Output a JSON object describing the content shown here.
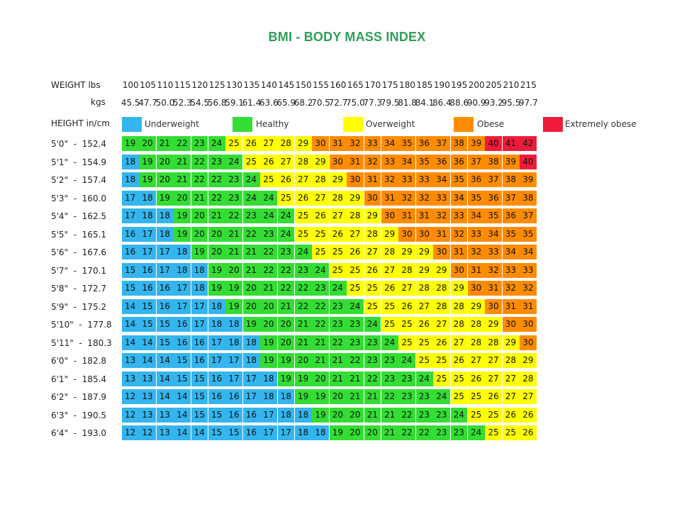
{
  "chart_data": {
    "type": "table",
    "title": "BMI - BODY MASS INDEX",
    "weight_lbs_label": "WEIGHT lbs",
    "weight_kgs_label": "kgs",
    "height_label": "HEIGHT in/cm",
    "weights_lbs": [
      "100",
      "105",
      "110",
      "115",
      "120",
      "125",
      "130",
      "135",
      "140",
      "145",
      "150",
      "155",
      "160",
      "165",
      "170",
      "175",
      "180",
      "185",
      "190",
      "195",
      "200",
      "205",
      "210",
      "215"
    ],
    "weights_kgs": [
      "45.5",
      "47.7",
      "50.0",
      "52.3",
      "54.5",
      "56.8",
      "59.1",
      "61.4",
      "63.6",
      "65.9",
      "68.2",
      "70.5",
      "72.7",
      "75.0",
      "77.3",
      "79.5",
      "81.8",
      "84.1",
      "86.4",
      "88.6",
      "90.9",
      "93.2",
      "95.5",
      "97.7"
    ],
    "heights": [
      "5'0\"  -  152.4",
      "5'1\"  -  154.9",
      "5'2\"  -  157.4",
      "5'3\"  -  160.0",
      "5'4\"  -  162.5",
      "5'5\"  -  165.1",
      "5'6\"  -  167.6",
      "5'7\"  -  170.1",
      "5'8\"  -  172.7",
      "5'9\"  -  175.2",
      "5'10\"  -  177.8",
      "5'11\"  -  180.3",
      "6'0\"  -  182.8",
      "6'1\"  -  185.4",
      "6'2\"  -  187.9",
      "6'3\"  -  190.5",
      "6'4\"  -  193.0"
    ],
    "bmi": [
      [
        19,
        20,
        21,
        22,
        23,
        24,
        25,
        26,
        27,
        28,
        29,
        30,
        31,
        32,
        33,
        34,
        35,
        36,
        37,
        38,
        39,
        40,
        41,
        42
      ],
      [
        18,
        19,
        20,
        21,
        22,
        23,
        24,
        25,
        26,
        27,
        28,
        29,
        30,
        31,
        32,
        33,
        34,
        35,
        36,
        36,
        37,
        38,
        39,
        40
      ],
      [
        18,
        19,
        20,
        21,
        22,
        22,
        23,
        24,
        25,
        26,
        27,
        28,
        29,
        30,
        31,
        32,
        33,
        33,
        34,
        35,
        36,
        37,
        38,
        39
      ],
      [
        17,
        18,
        19,
        20,
        21,
        22,
        23,
        24,
        24,
        25,
        26,
        27,
        28,
        29,
        30,
        31,
        32,
        32,
        33,
        34,
        35,
        36,
        37,
        38
      ],
      [
        17,
        18,
        18,
        19,
        20,
        21,
        22,
        23,
        24,
        24,
        25,
        26,
        27,
        28,
        29,
        30,
        31,
        31,
        32,
        33,
        34,
        35,
        36,
        37
      ],
      [
        16,
        17,
        18,
        19,
        20,
        20,
        21,
        22,
        23,
        24,
        25,
        25,
        26,
        27,
        28,
        29,
        30,
        30,
        31,
        32,
        33,
        34,
        35,
        35
      ],
      [
        16,
        17,
        17,
        18,
        19,
        20,
        21,
        21,
        22,
        23,
        24,
        25,
        25,
        26,
        27,
        28,
        29,
        29,
        30,
        31,
        32,
        33,
        34,
        34
      ],
      [
        15,
        16,
        17,
        18,
        18,
        19,
        20,
        21,
        22,
        22,
        23,
        24,
        25,
        25,
        26,
        27,
        28,
        29,
        29,
        30,
        31,
        32,
        33,
        33
      ],
      [
        15,
        16,
        16,
        17,
        18,
        19,
        19,
        20,
        21,
        22,
        22,
        23,
        24,
        25,
        25,
        26,
        27,
        28,
        28,
        29,
        30,
        31,
        32,
        32
      ],
      [
        14,
        15,
        16,
        17,
        17,
        18,
        19,
        20,
        20,
        21,
        22,
        22,
        23,
        24,
        25,
        25,
        26,
        27,
        28,
        28,
        29,
        30,
        31,
        31
      ],
      [
        14,
        15,
        15,
        16,
        17,
        18,
        18,
        19,
        20,
        20,
        21,
        22,
        23,
        23,
        24,
        25,
        25,
        26,
        27,
        28,
        28,
        29,
        30,
        30
      ],
      [
        14,
        14,
        15,
        16,
        16,
        17,
        18,
        18,
        19,
        20,
        21,
        21,
        22,
        23,
        23,
        24,
        25,
        25,
        26,
        27,
        28,
        28,
        29,
        30
      ],
      [
        13,
        14,
        14,
        15,
        16,
        17,
        17,
        18,
        19,
        19,
        20,
        21,
        21,
        22,
        23,
        23,
        24,
        25,
        25,
        26,
        27,
        27,
        28,
        29
      ],
      [
        13,
        13,
        14,
        15,
        15,
        16,
        17,
        17,
        18,
        19,
        19,
        20,
        21,
        21,
        22,
        23,
        23,
        24,
        25,
        25,
        26,
        27,
        27,
        28
      ],
      [
        12,
        13,
        14,
        14,
        15,
        16,
        16,
        17,
        18,
        18,
        19,
        19,
        20,
        21,
        21,
        22,
        23,
        23,
        24,
        25,
        25,
        26,
        27,
        27
      ],
      [
        12,
        13,
        13,
        14,
        15,
        15,
        16,
        16,
        17,
        18,
        18,
        19,
        20,
        20,
        21,
        21,
        22,
        23,
        23,
        24,
        25,
        25,
        26,
        26
      ],
      [
        12,
        12,
        13,
        14,
        14,
        15,
        15,
        16,
        17,
        17,
        18,
        18,
        19,
        20,
        20,
        21,
        22,
        22,
        23,
        23,
        24,
        25,
        25,
        26
      ]
    ],
    "legend": [
      {
        "name": "Underweight",
        "color": "#33b5ee"
      },
      {
        "name": "Healthy",
        "color": "#33dd33"
      },
      {
        "name": "Overweight",
        "color": "#ffff00"
      },
      {
        "name": "Obese",
        "color": "#ff8c00"
      },
      {
        "name": "Extremely obese",
        "color": "#ee1c3a"
      }
    ],
    "cell_colors": {
      "underweight": "#33b5ee",
      "healthy": "#33dd33",
      "overweight": "#ffff00",
      "obese": "#ff8c00",
      "extremely_obese": "#ee1c3a"
    },
    "thresholds": {
      "healthy_from": 18.5,
      "overweight_from": 25,
      "obese_from": 30,
      "extremely_obese_from": 40
    }
  }
}
